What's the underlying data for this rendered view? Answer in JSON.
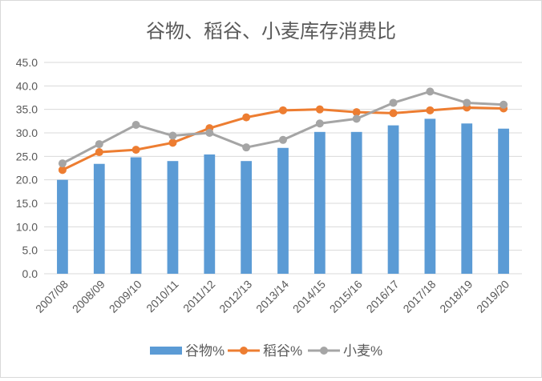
{
  "chart_data": {
    "type": "bar",
    "title": "谷物、稻谷、小麦库存消费比",
    "categories": [
      "2007/08",
      "2008/09",
      "2009/10",
      "2010/11",
      "2011/12",
      "2012/13",
      "2013/14",
      "2014/15",
      "2015/16",
      "2016/17",
      "2017/18",
      "2018/19",
      "2019/20"
    ],
    "ylim": [
      0,
      45
    ],
    "yticks": [
      "0.0",
      "5.0",
      "10.0",
      "15.0",
      "20.0",
      "25.0",
      "30.0",
      "35.0",
      "40.0",
      "45.0"
    ],
    "grid": true,
    "legend_position": "bottom",
    "series": [
      {
        "name": "谷物%",
        "type": "bar",
        "color": "#5b9bd5",
        "values": [
          20.0,
          23.4,
          24.8,
          24.0,
          25.4,
          24.0,
          26.8,
          30.2,
          30.2,
          31.6,
          33.0,
          32.0,
          30.9
        ]
      },
      {
        "name": "稻谷%",
        "type": "line",
        "color": "#ed7d31",
        "values": [
          22.1,
          25.9,
          26.4,
          27.9,
          31.0,
          33.3,
          34.8,
          35.0,
          34.4,
          34.2,
          34.8,
          35.4,
          35.2
        ]
      },
      {
        "name": "小麦%",
        "type": "line",
        "color": "#a5a5a5",
        "values": [
          23.5,
          27.6,
          31.7,
          29.4,
          30.0,
          26.9,
          28.5,
          32.0,
          33.0,
          36.4,
          38.8,
          36.4,
          36.0
        ]
      }
    ]
  }
}
